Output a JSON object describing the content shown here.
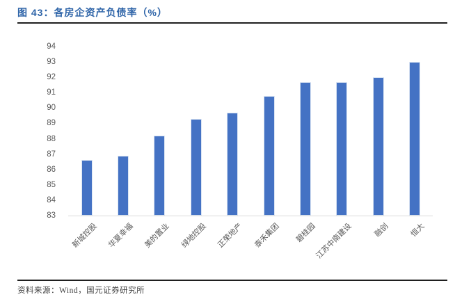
{
  "header": {
    "title": "图 43：各房企资产负债率（%）"
  },
  "footer": {
    "source": "资料来源：Wind，国元证券研究所"
  },
  "colors": {
    "title_blue": "#2E64A8",
    "bar_fill": "#4472C4",
    "bar_edge": "#dbe5f3",
    "axis_line": "#d9d9d9",
    "tick_label": "#595959",
    "divider": "#1f1f1f"
  },
  "chart_data": {
    "type": "bar",
    "title": "各房企资产负债率（%）",
    "categories": [
      "新城控股",
      "华夏幸福",
      "美的置业",
      "绿地控股",
      "正荣地产",
      "泰禾集团",
      "碧桂园",
      "江苏中南建设",
      "融创",
      "恒大"
    ],
    "values": [
      86.6,
      86.9,
      88.2,
      89.3,
      89.7,
      90.8,
      91.7,
      91.7,
      92.0,
      93.0
    ],
    "xlabel": "",
    "ylabel": "",
    "ylim": [
      83,
      94
    ],
    "ytick_step": 1,
    "yticks": [
      83,
      84,
      85,
      86,
      87,
      88,
      89,
      90,
      91,
      92,
      93,
      94
    ],
    "grid": false,
    "legend_position": "none",
    "tick_label_rotation_deg": 45
  }
}
